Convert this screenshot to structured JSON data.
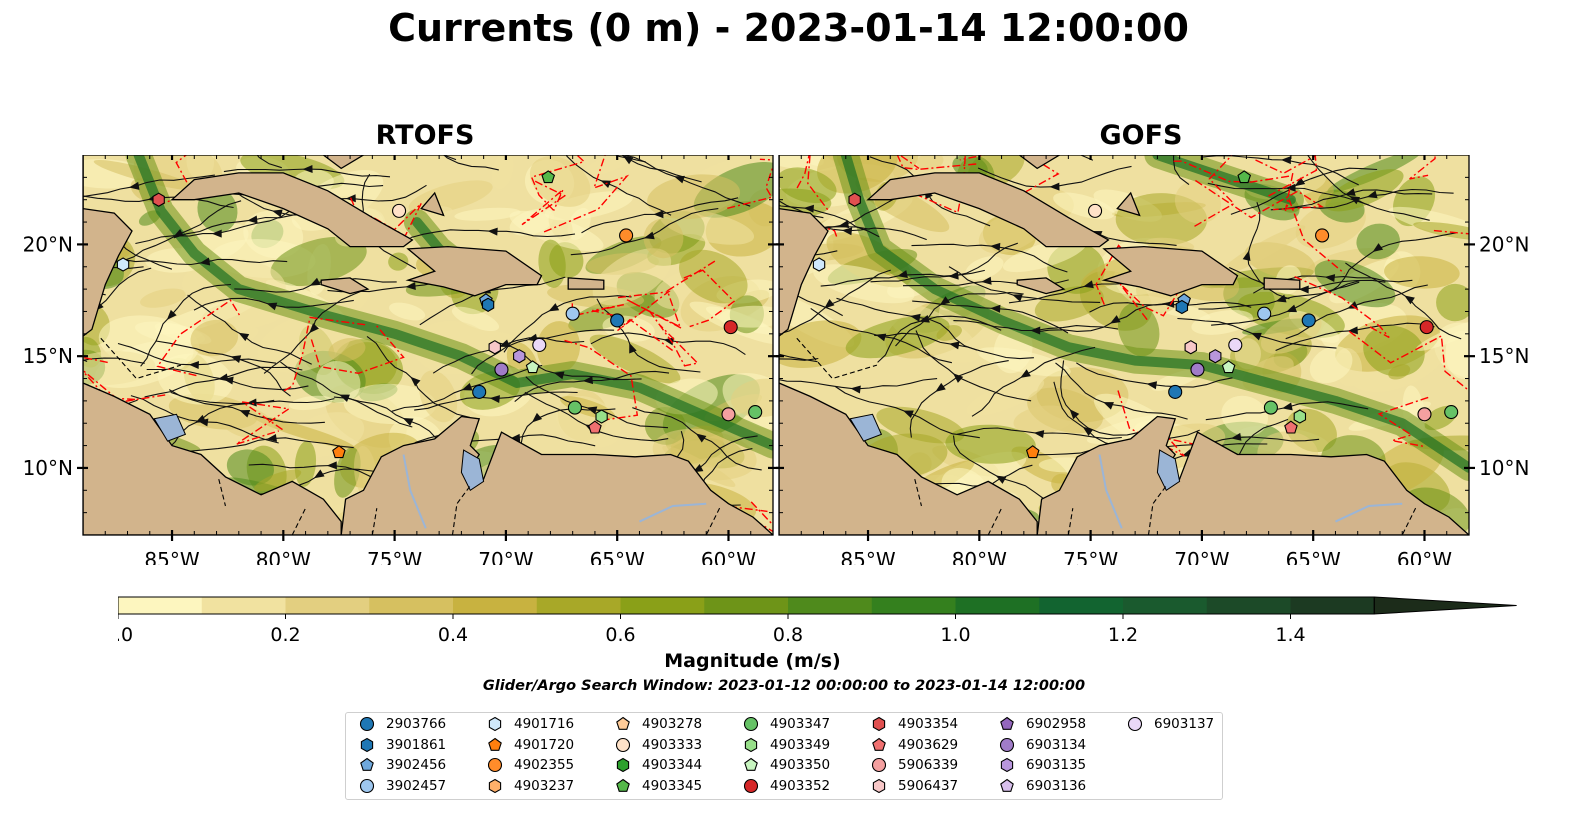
{
  "title": "Currents (0 m) - 2023-01-14 12:00:00",
  "panels": [
    {
      "title": "RTOFS"
    },
    {
      "title": "GOFS"
    }
  ],
  "map": {
    "lon_range": [
      -89,
      -58
    ],
    "lat_range": [
      7,
      24
    ],
    "x_ticks": [
      {
        "lon": -85,
        "label": "85°W"
      },
      {
        "lon": -80,
        "label": "80°W"
      },
      {
        "lon": -75,
        "label": "75°W"
      },
      {
        "lon": -70,
        "label": "70°W"
      },
      {
        "lon": -65,
        "label": "65°W"
      },
      {
        "lon": -60,
        "label": "60°W"
      }
    ],
    "y_ticks": [
      {
        "lat": 20,
        "label": "20°N"
      },
      {
        "lat": 15,
        "label": "15°N"
      },
      {
        "lat": 10,
        "label": "10°N"
      }
    ],
    "land_color": "#d2b48c",
    "contour_color": "#ff0000"
  },
  "colorbar": {
    "label": "Magnitude (m/s)",
    "min": 0.0,
    "max": 1.6,
    "step": 0.1,
    "extend": "max",
    "tick_labels": [
      {
        "value": 0.0,
        "label": "0.0"
      },
      {
        "value": 0.2,
        "label": "0.2"
      },
      {
        "value": 0.4,
        "label": "0.4"
      },
      {
        "value": 0.6,
        "label": "0.6"
      },
      {
        "value": 0.8,
        "label": "0.8"
      },
      {
        "value": 1.0,
        "label": "1.0"
      },
      {
        "value": 1.2,
        "label": "1.2"
      },
      {
        "value": 1.4,
        "label": "1.4"
      }
    ],
    "colors": [
      "#fdf6bf",
      "#f1e2a0",
      "#e3cf80",
      "#d6c060",
      "#c8b240",
      "#a8a828",
      "#8aa018",
      "#6e9418",
      "#4f8a1c",
      "#34801e",
      "#1e7024",
      "#126430",
      "#1a5a2e",
      "#1c4a28",
      "#1c3a22",
      "#1c2c1a"
    ]
  },
  "search_window": "Glider/Argo Search Window: 2023-01-12 00:00:00 to 2023-01-14 12:00:00",
  "floats": [
    {
      "id": "2903766",
      "color": "#1f77b4",
      "marker": "circle",
      "rtofs": [
        -65,
        16.6
      ],
      "gofs": [
        -65.2,
        16.6
      ]
    },
    {
      "id": "3901861",
      "color": "#1f77b4",
      "marker": "hexagon",
      "rtofs": null,
      "gofs": null
    },
    {
      "id": "3902456",
      "color": "#6fa8dc",
      "marker": "pentagon",
      "rtofs": [
        -70.9,
        17.5
      ],
      "gofs": [
        -70.8,
        17.5
      ]
    },
    {
      "id": "3902457",
      "color": "#9ec7ef",
      "marker": "circle",
      "rtofs": null,
      "gofs": null
    },
    {
      "id": "4901716",
      "color": "#cfe8fb",
      "marker": "hexagon",
      "rtofs": [
        -87.2,
        19.1
      ],
      "gofs": [
        -87.2,
        19.1
      ]
    },
    {
      "id": "4901720",
      "color": "#ff7f0e",
      "marker": "pentagon",
      "rtofs": [
        -77.5,
        10.7
      ],
      "gofs": [
        -77.6,
        10.7
      ]
    },
    {
      "id": "4902355",
      "color": "#ff8c2a",
      "marker": "circle",
      "rtofs": [
        -64.6,
        20.4
      ],
      "gofs": [
        -64.6,
        20.4
      ]
    },
    {
      "id": "4903237",
      "color": "#ffb06a",
      "marker": "hexagon",
      "rtofs": null,
      "gofs": null
    },
    {
      "id": "4903278",
      "color": "#ffcc99",
      "marker": "pentagon",
      "rtofs": null,
      "gofs": null
    },
    {
      "id": "4903333",
      "color": "#ffe2c8",
      "marker": "circle",
      "rtofs": [
        -74.8,
        21.5
      ],
      "gofs": [
        -74.8,
        21.5
      ]
    },
    {
      "id": "4903344",
      "color": "#2ca02c",
      "marker": "hexagon",
      "rtofs": null,
      "gofs": null
    },
    {
      "id": "4903345",
      "color": "#55b84a",
      "marker": "pentagon",
      "rtofs": [
        -68.1,
        23
      ],
      "gofs": [
        -68.1,
        23
      ]
    },
    {
      "id": "4903347",
      "color": "#66c266",
      "marker": "circle",
      "rtofs": [
        -66.9,
        12.7
      ],
      "gofs": [
        -66.9,
        12.7
      ]
    },
    {
      "id": "4903349",
      "color": "#98df8a",
      "marker": "hexagon",
      "rtofs": [
        -65.7,
        12.3
      ],
      "gofs": [
        -65.6,
        12.3
      ]
    },
    {
      "id": "4903350",
      "color": "#c8f5c0",
      "marker": "pentagon",
      "rtofs": [
        -68.8,
        14.5
      ],
      "gofs": [
        -68.8,
        14.5
      ]
    },
    {
      "id": "4903352",
      "color": "#d62728",
      "marker": "circle",
      "rtofs": [
        -59.9,
        16.3
      ],
      "gofs": [
        -59.9,
        16.3
      ]
    },
    {
      "id": "4903354",
      "color": "#e05050",
      "marker": "hexagon",
      "rtofs": [
        -85.6,
        22
      ],
      "gofs": [
        -85.6,
        22
      ]
    },
    {
      "id": "4903629",
      "color": "#f07070",
      "marker": "pentagon",
      "rtofs": [
        -66,
        11.8
      ],
      "gofs": [
        -66,
        11.8
      ]
    },
    {
      "id": "5906339",
      "color": "#f4a0a0",
      "marker": "circle",
      "rtofs": [
        -60,
        12.4
      ],
      "gofs": [
        -60,
        12.4
      ]
    },
    {
      "id": "5906437",
      "color": "#f8c8c8",
      "marker": "hexagon",
      "rtofs": [
        -70.5,
        15.4
      ],
      "gofs": [
        -70.5,
        15.4
      ]
    },
    {
      "id": "6902958",
      "color": "#9467bd",
      "marker": "pentagon",
      "rtofs": null,
      "gofs": null
    },
    {
      "id": "6903134",
      "color": "#a07cc8",
      "marker": "circle",
      "rtofs": [
        -70.2,
        14.4
      ],
      "gofs": [
        -70.2,
        14.4
      ]
    },
    {
      "id": "6903135",
      "color": "#b896dc",
      "marker": "hexagon",
      "rtofs": [
        -69.4,
        15
      ],
      "gofs": [
        -69.4,
        15
      ]
    },
    {
      "id": "6903136",
      "color": "#d8c0ec",
      "marker": "pentagon",
      "rtofs": null,
      "gofs": null
    },
    {
      "id": "6903137",
      "color": "#ead8f8",
      "marker": "circle",
      "rtofs": [
        -68.5,
        15.5
      ],
      "gofs": [
        -68.5,
        15.5
      ]
    },
    {
      "id": "3902457-b",
      "color": "#9ec7ef",
      "marker": "circle",
      "rtofs": [
        -67,
        16.9
      ],
      "gofs": [
        -67.2,
        16.9
      ]
    },
    {
      "id": "2903766-b",
      "color": "#1f77b4",
      "marker": "circle",
      "rtofs": [
        -71.2,
        13.4
      ],
      "gofs": [
        -71.2,
        13.4
      ]
    },
    {
      "id": "3901861-b",
      "color": "#1f77b4",
      "marker": "hexagon",
      "rtofs": [
        -70.8,
        17.3
      ],
      "gofs": [
        -70.9,
        17.2
      ]
    },
    {
      "id": "5906339-b",
      "color": "#66c266",
      "marker": "circle",
      "rtofs": [
        -58.8,
        12.5
      ],
      "gofs": [
        -58.8,
        12.5
      ]
    }
  ]
}
